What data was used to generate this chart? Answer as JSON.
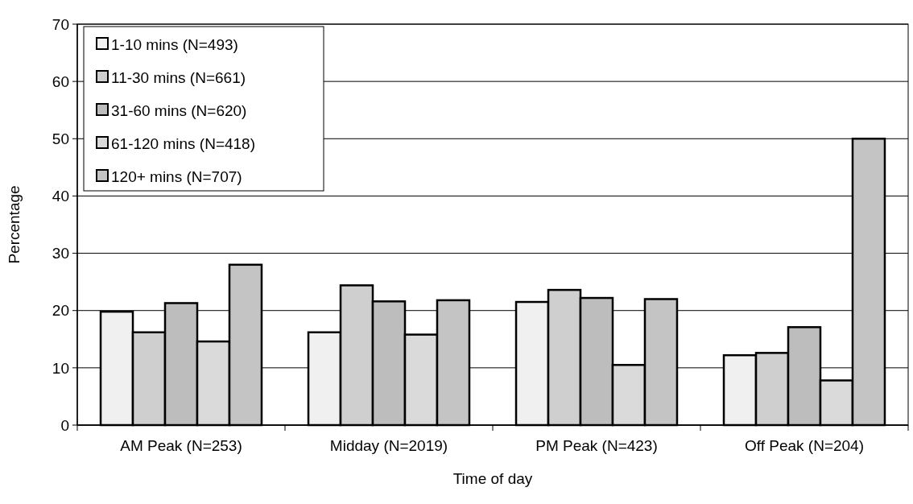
{
  "chart_data": {
    "type": "bar",
    "xlabel": "Time of day",
    "ylabel": "Percentage",
    "categories": [
      "AM Peak (N=253)",
      "Midday (N=2019)",
      "PM Peak (N=423)",
      "Off Peak (N=204)"
    ],
    "series": [
      {
        "name": "1-10 mins (N=493)",
        "color": "#f0f0f0",
        "values": [
          19.8,
          16.2,
          21.5,
          12.2
        ]
      },
      {
        "name": "11-30 mins (N=661)",
        "color": "#cfcfcf",
        "values": [
          16.2,
          24.4,
          23.6,
          12.6
        ]
      },
      {
        "name": "31-60 mins (N=620)",
        "color": "#bdbdbd",
        "values": [
          21.3,
          21.6,
          22.2,
          17.1
        ]
      },
      {
        "name": "61-120 mins (N=418)",
        "color": "#dadada",
        "values": [
          14.6,
          15.8,
          10.5,
          7.8
        ]
      },
      {
        "name": "120+ mins (N=707)",
        "color": "#c4c4c4",
        "values": [
          28.0,
          21.8,
          22.0,
          50.0
        ]
      }
    ],
    "ylim": [
      0,
      70
    ],
    "yticks": [
      0,
      10,
      20,
      30,
      40,
      50,
      60,
      70
    ],
    "grid": "y",
    "legend": "top left"
  }
}
